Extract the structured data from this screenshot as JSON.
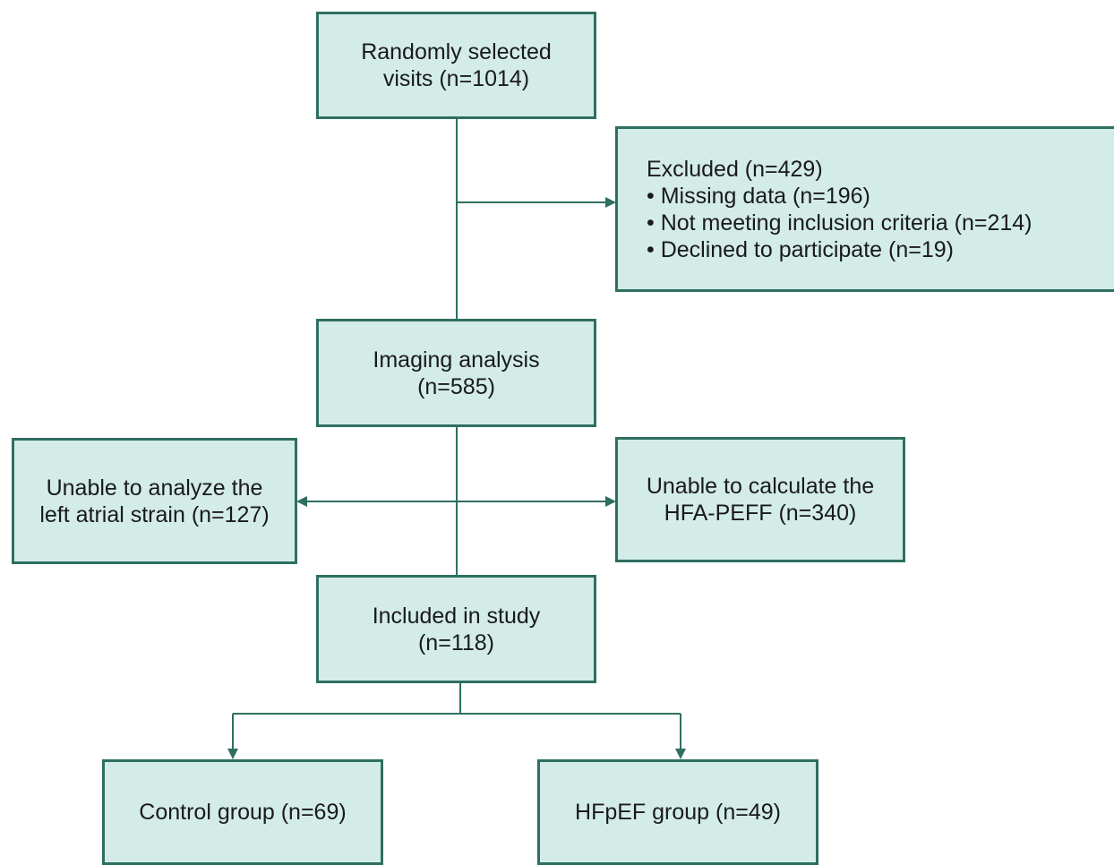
{
  "colors": {
    "box_fill": "#d3ece8",
    "box_border": "#2e6f61",
    "connector": "#2e6f61",
    "text": "#1a1a1a"
  },
  "boxes": {
    "randomly_selected": {
      "line1": "Randomly selected",
      "line2": "visits (n=1014)"
    },
    "excluded": {
      "title": "Excluded (n=429)",
      "items": [
        "• Missing data (n=196)",
        "• Not meeting inclusion criteria (n=214)",
        "• Declined to participate (n=19)"
      ]
    },
    "imaging_analysis": {
      "line1": "Imaging analysis",
      "line2": "(n=585)"
    },
    "unable_strain": {
      "line1": "Unable to analyze the",
      "line2": "left atrial strain (n=127)"
    },
    "unable_hfapeff": {
      "line1": "Unable to calculate the",
      "line2": "HFA-PEFF (n=340)"
    },
    "included": {
      "line1": "Included in study",
      "line2": "(n=118)"
    },
    "control_group": {
      "line1": "Control group (n=69)"
    },
    "hfpef_group": {
      "line1": "HFpEF group (n=49)"
    }
  }
}
